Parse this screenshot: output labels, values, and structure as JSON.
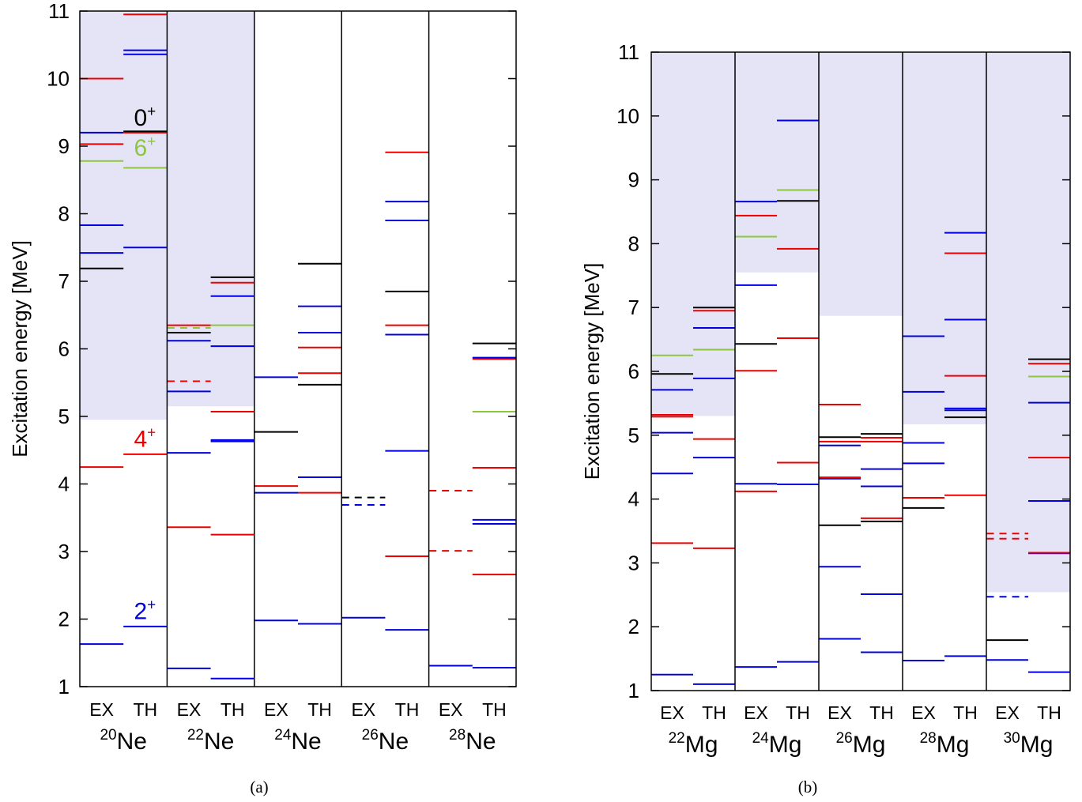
{
  "colors": {
    "2+": "#0000e0",
    "4+": "#ee0000",
    "6+": "#8cc63f",
    "0+": "#000000",
    "shade": "#e4e4f6"
  },
  "chart_data": [
    {
      "type": "level-scheme",
      "caption": "(a)",
      "ylabel": "Excitation energy [MeV]",
      "ylim": [
        1,
        11
      ],
      "yticks": [
        "1",
        "2",
        "3",
        "4",
        "5",
        "6",
        "7",
        "8",
        "9",
        "10",
        "11"
      ],
      "col_labels": [
        "EX",
        "TH"
      ],
      "annotations": [
        {
          "base": "0",
          "sup": "+",
          "color": "0+",
          "y": 9.22
        },
        {
          "base": "6",
          "sup": "+",
          "color": "6+",
          "y": 8.78
        },
        {
          "base": "4",
          "sup": "+",
          "color": "4+",
          "y": 4.47
        },
        {
          "base": "2",
          "sup": "+",
          "color": "2+",
          "y": 1.92
        }
      ],
      "isotopes": [
        {
          "mass": "20",
          "element": "Ne",
          "shade_from": 4.95,
          "EX": [
            [
              1.63,
              "2+",
              0
            ],
            [
              4.25,
              "4+",
              0
            ],
            [
              7.19,
              "0+",
              0
            ],
            [
              7.42,
              "2+",
              0
            ],
            [
              7.83,
              "2+",
              0
            ],
            [
              8.78,
              "6+",
              0
            ],
            [
              9.03,
              "4+",
              0
            ],
            [
              9.2,
              "2+",
              0
            ],
            [
              10.0,
              "4+",
              0
            ]
          ],
          "TH": [
            [
              1.89,
              "2+",
              0
            ],
            [
              4.44,
              "4+",
              0
            ],
            [
              7.5,
              "2+",
              0
            ],
            [
              8.68,
              "6+",
              0
            ],
            [
              9.2,
              "4+",
              0
            ],
            [
              9.22,
              "0+",
              0
            ],
            [
              10.36,
              "2+",
              0
            ],
            [
              10.42,
              "2+",
              0
            ],
            [
              10.95,
              "4+",
              0
            ]
          ]
        },
        {
          "mass": "22",
          "element": "Ne",
          "shade_from": 5.15,
          "EX": [
            [
              1.27,
              "2+",
              0
            ],
            [
              3.36,
              "4+",
              0
            ],
            [
              4.46,
              "2+",
              0
            ],
            [
              5.37,
              "2+",
              0
            ],
            [
              5.52,
              "4+",
              1
            ],
            [
              6.12,
              "2+",
              0
            ],
            [
              6.24,
              "0+",
              0
            ],
            [
              6.31,
              "6+",
              1
            ],
            [
              6.35,
              "4+",
              0
            ]
          ],
          "TH": [
            [
              1.12,
              "2+",
              0
            ],
            [
              3.25,
              "4+",
              0
            ],
            [
              4.63,
              "2+",
              0
            ],
            [
              4.65,
              "2+",
              0
            ],
            [
              5.07,
              "4+",
              0
            ],
            [
              6.04,
              "2+",
              0
            ],
            [
              6.35,
              "6+",
              0
            ],
            [
              6.78,
              "2+",
              0
            ],
            [
              6.98,
              "4+",
              0
            ],
            [
              7.06,
              "0+",
              0
            ]
          ]
        },
        {
          "mass": "24",
          "element": "Ne",
          "shade_from": null,
          "EX": [
            [
              1.98,
              "2+",
              0
            ],
            [
              3.87,
              "2+",
              0
            ],
            [
              3.97,
              "4+",
              0
            ],
            [
              4.77,
              "0+",
              0
            ],
            [
              5.58,
              "2+",
              0
            ]
          ],
          "TH": [
            [
              1.93,
              "2+",
              0
            ],
            [
              3.87,
              "4+",
              0
            ],
            [
              4.1,
              "2+",
              0
            ],
            [
              5.47,
              "0+",
              0
            ],
            [
              5.64,
              "4+",
              0
            ],
            [
              6.02,
              "4+",
              0
            ],
            [
              6.24,
              "2+",
              0
            ],
            [
              6.63,
              "2+",
              0
            ],
            [
              7.26,
              "0+",
              0
            ]
          ]
        },
        {
          "mass": "26",
          "element": "Ne",
          "shade_from": null,
          "EX": [
            [
              2.02,
              "2+",
              0
            ],
            [
              3.69,
              "2+",
              1
            ],
            [
              3.8,
              "0+",
              1
            ]
          ],
          "TH": [
            [
              1.84,
              "2+",
              0
            ],
            [
              2.93,
              "4+",
              0
            ],
            [
              4.49,
              "2+",
              0
            ],
            [
              6.21,
              "2+",
              0
            ],
            [
              6.35,
              "4+",
              0
            ],
            [
              6.85,
              "0+",
              0
            ],
            [
              7.9,
              "2+",
              0
            ],
            [
              8.18,
              "2+",
              0
            ],
            [
              8.91,
              "4+",
              0
            ]
          ]
        },
        {
          "mass": "28",
          "element": "Ne",
          "shade_from": null,
          "EX": [
            [
              1.31,
              "2+",
              0
            ],
            [
              3.01,
              "4+",
              1
            ],
            [
              3.9,
              "4+",
              1
            ]
          ],
          "TH": [
            [
              1.28,
              "2+",
              0
            ],
            [
              2.66,
              "4+",
              0
            ],
            [
              3.41,
              "2+",
              0
            ],
            [
              3.47,
              "2+",
              0
            ],
            [
              4.24,
              "4+",
              0
            ],
            [
              5.07,
              "6+",
              0
            ],
            [
              5.85,
              "4+",
              0
            ],
            [
              5.87,
              "2+",
              0
            ],
            [
              6.08,
              "0+",
              0
            ]
          ]
        }
      ]
    },
    {
      "type": "level-scheme",
      "caption": "(b)",
      "ylabel": "Excitation energy [MeV]",
      "ylim": [
        1,
        11
      ],
      "yticks": [
        "1",
        "2",
        "3",
        "4",
        "5",
        "6",
        "7",
        "8",
        "9",
        "10",
        "11"
      ],
      "col_labels": [
        "EX",
        "TH"
      ],
      "annotations": [],
      "isotopes": [
        {
          "mass": "22",
          "element": "Mg",
          "shade_from": 5.3,
          "EX": [
            [
              1.25,
              "2+",
              0
            ],
            [
              3.31,
              "4+",
              0
            ],
            [
              4.4,
              "2+",
              0
            ],
            [
              5.04,
              "2+",
              0
            ],
            [
              5.29,
              "4+",
              0
            ],
            [
              5.32,
              "4+",
              0
            ],
            [
              5.71,
              "2+",
              0
            ],
            [
              5.96,
              "0+",
              0
            ],
            [
              6.25,
              "6+",
              0
            ]
          ],
          "TH": [
            [
              1.1,
              "2+",
              0
            ],
            [
              3.23,
              "4+",
              0
            ],
            [
              4.65,
              "2+",
              0
            ],
            [
              4.94,
              "4+",
              0
            ],
            [
              5.89,
              "2+",
              0
            ],
            [
              6.34,
              "6+",
              0
            ],
            [
              6.68,
              "2+",
              0
            ],
            [
              6.95,
              "4+",
              0
            ],
            [
              7.0,
              "0+",
              0
            ]
          ]
        },
        {
          "mass": "24",
          "element": "Mg",
          "shade_from": 7.55,
          "EX": [
            [
              1.37,
              "2+",
              0
            ],
            [
              4.12,
              "4+",
              0
            ],
            [
              4.24,
              "2+",
              0
            ],
            [
              6.01,
              "4+",
              0
            ],
            [
              6.43,
              "0+",
              0
            ],
            [
              7.35,
              "2+",
              0
            ],
            [
              8.11,
              "6+",
              0
            ],
            [
              8.44,
              "4+",
              0
            ],
            [
              8.66,
              "2+",
              0
            ]
          ],
          "TH": [
            [
              1.45,
              "2+",
              0
            ],
            [
              4.23,
              "2+",
              0
            ],
            [
              4.57,
              "4+",
              0
            ],
            [
              6.52,
              "4+",
              0
            ],
            [
              7.92,
              "4+",
              0
            ],
            [
              8.67,
              "0+",
              0
            ],
            [
              8.84,
              "6+",
              0
            ],
            [
              9.93,
              "2+",
              0
            ]
          ]
        },
        {
          "mass": "26",
          "element": "Mg",
          "shade_from": 6.87,
          "EX": [
            [
              1.81,
              "2+",
              0
            ],
            [
              2.94,
              "2+",
              0
            ],
            [
              3.59,
              "0+",
              0
            ],
            [
              4.32,
              "2+",
              0
            ],
            [
              4.34,
              "4+",
              0
            ],
            [
              4.84,
              "2+",
              0
            ],
            [
              4.9,
              "4+",
              0
            ],
            [
              4.97,
              "0+",
              0
            ],
            [
              5.48,
              "4+",
              0
            ]
          ],
          "TH": [
            [
              1.6,
              "2+",
              0
            ],
            [
              2.51,
              "2+",
              0
            ],
            [
              3.65,
              "0+",
              0
            ],
            [
              3.7,
              "4+",
              0
            ],
            [
              4.2,
              "2+",
              0
            ],
            [
              4.47,
              "2+",
              0
            ],
            [
              4.9,
              "4+",
              0
            ],
            [
              4.96,
              "4+",
              0
            ],
            [
              5.02,
              "0+",
              0
            ]
          ]
        },
        {
          "mass": "28",
          "element": "Mg",
          "shade_from": 5.17,
          "EX": [
            [
              1.47,
              "2+",
              0
            ],
            [
              3.86,
              "0+",
              0
            ],
            [
              4.02,
              "4+",
              0
            ],
            [
              4.56,
              "2+",
              0
            ],
            [
              4.88,
              "2+",
              0
            ],
            [
              5.68,
              "2+",
              0
            ],
            [
              6.55,
              "2+",
              0
            ]
          ],
          "TH": [
            [
              1.54,
              "2+",
              0
            ],
            [
              4.06,
              "4+",
              0
            ],
            [
              5.28,
              "0+",
              0
            ],
            [
              5.39,
              "2+",
              0
            ],
            [
              5.42,
              "2+",
              0
            ],
            [
              5.93,
              "4+",
              0
            ],
            [
              6.81,
              "2+",
              0
            ],
            [
              7.85,
              "4+",
              0
            ],
            [
              8.17,
              "2+",
              0
            ]
          ]
        },
        {
          "mass": "30",
          "element": "Mg",
          "shade_from": 2.54,
          "EX": [
            [
              1.48,
              "2+",
              0
            ],
            [
              1.79,
              "0+",
              0
            ],
            [
              2.47,
              "2+",
              1
            ],
            [
              3.38,
              "4+",
              1
            ],
            [
              3.46,
              "4+",
              1
            ]
          ],
          "TH": [
            [
              1.29,
              "2+",
              0
            ],
            [
              3.15,
              "2+",
              0
            ],
            [
              3.16,
              "4+",
              0
            ],
            [
              3.97,
              "2+",
              0
            ],
            [
              4.65,
              "4+",
              0
            ],
            [
              5.51,
              "2+",
              0
            ],
            [
              5.92,
              "6+",
              0
            ],
            [
              6.12,
              "4+",
              0
            ],
            [
              6.19,
              "0+",
              0
            ]
          ]
        }
      ]
    }
  ]
}
